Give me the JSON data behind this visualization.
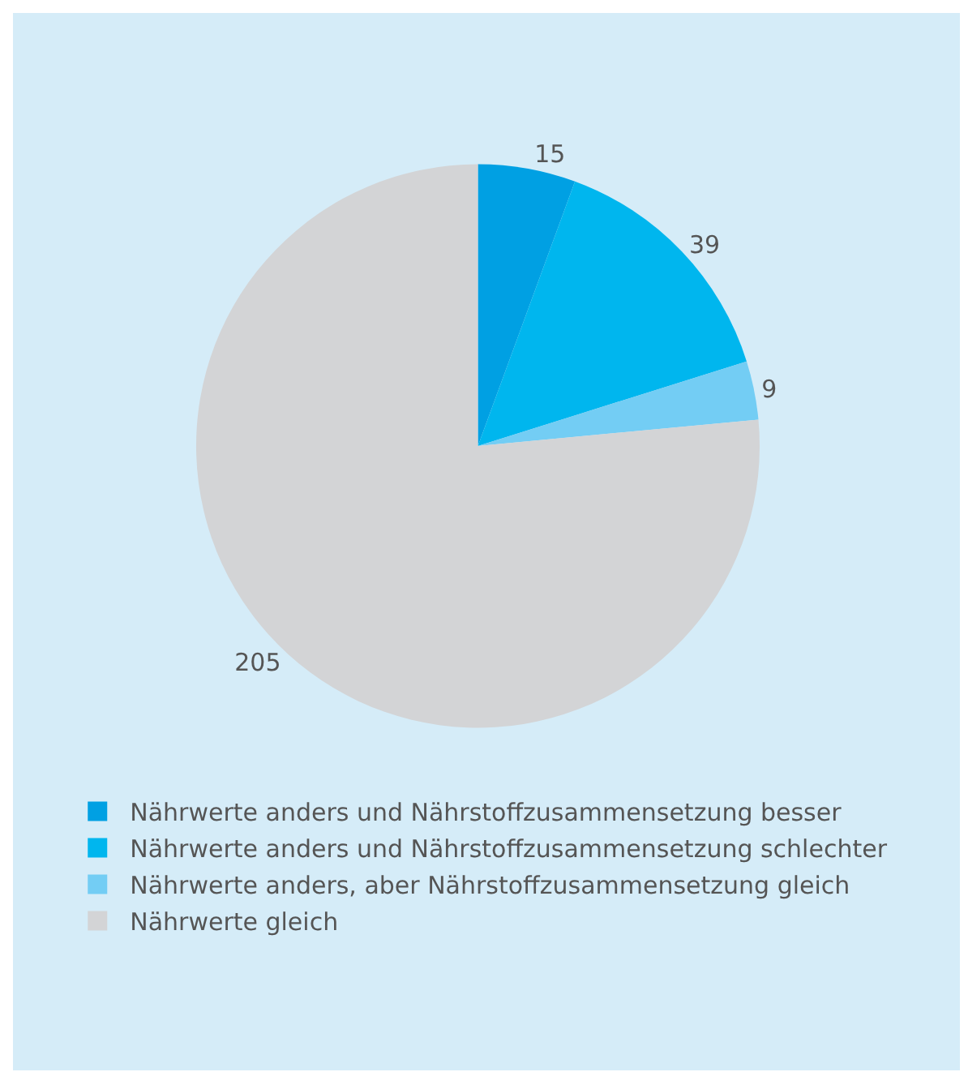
{
  "chart_data": {
    "type": "pie",
    "categories": [
      "Nährwerte anders und Nährstoffzusammensetzung besser",
      "Nährwerte anders und Nährstoffzusammensetzung schlechter",
      "Nährwerte anders, aber Nährstoffzusammensetzung gleich",
      "Nährwerte gleich"
    ],
    "values": [
      15,
      39,
      9,
      205
    ],
    "colors": [
      "#00a0e3",
      "#00b6ee",
      "#73cdf4",
      "#d3d4d6"
    ],
    "data_labels": true,
    "legend": "bottom"
  }
}
